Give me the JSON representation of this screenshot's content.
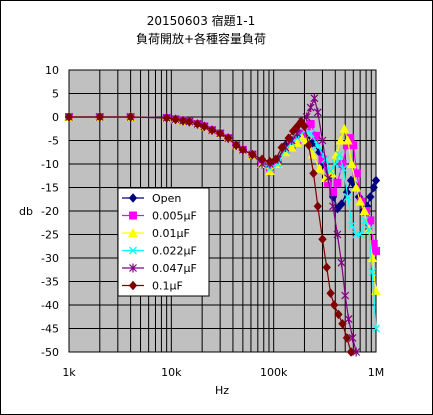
{
  "chart_data": {
    "type": "line",
    "title": [
      "20150603 宿題1-1",
      "負荷開放+各種容量負荷"
    ],
    "xlabel": "Hz",
    "ylabel": "db",
    "xscale": "log",
    "xlim": [
      1000,
      1000000
    ],
    "ylim": [
      -50,
      10
    ],
    "yticks": [
      10,
      5,
      0,
      -5,
      -10,
      -15,
      -20,
      -25,
      -30,
      -35,
      -40,
      -45,
      -50
    ],
    "xtick_values": [
      1000,
      10000,
      100000,
      1000000
    ],
    "xtick_labels": [
      "1k",
      "10k",
      "100k",
      "1M"
    ],
    "grid": true,
    "plot_background": "#c0c0c0",
    "legend_placement": "left-center",
    "series": [
      {
        "name": "Open",
        "color": "#000080",
        "marker": "diamond",
        "points": [
          [
            1000,
            0
          ],
          [
            2000,
            0
          ],
          [
            4000,
            0
          ],
          [
            9000,
            -0.2
          ],
          [
            11000,
            -0.5
          ],
          [
            13000,
            -0.8
          ],
          [
            15000,
            -1
          ],
          [
            18000,
            -1.5
          ],
          [
            21000,
            -2
          ],
          [
            25000,
            -2.8
          ],
          [
            30000,
            -3.5
          ],
          [
            36000,
            -4.5
          ],
          [
            43000,
            -6
          ],
          [
            50000,
            -7
          ],
          [
            62000,
            -8
          ],
          [
            77000,
            -10
          ],
          [
            92000,
            -11
          ],
          [
            110000,
            -9
          ],
          [
            130000,
            -6
          ],
          [
            150000,
            -5
          ],
          [
            170000,
            -4.5
          ],
          [
            190000,
            -4
          ],
          [
            210000,
            -4.5
          ],
          [
            240000,
            -5.5
          ],
          [
            280000,
            -7.5
          ],
          [
            310000,
            -10
          ],
          [
            340000,
            -13
          ],
          [
            380000,
            -17
          ],
          [
            420000,
            -19.5
          ],
          [
            460000,
            -18.5
          ],
          [
            520000,
            -16
          ],
          [
            570000,
            -13.5
          ],
          [
            620000,
            -14.5
          ],
          [
            680000,
            -17
          ],
          [
            750000,
            -20
          ],
          [
            820000,
            -19
          ],
          [
            880000,
            -17
          ],
          [
            950000,
            -15
          ],
          [
            1000000,
            -13.5
          ]
        ]
      },
      {
        "name": "0.005μF",
        "color": "#ff00ff",
        "marker": "square",
        "points": [
          [
            1000,
            0
          ],
          [
            2000,
            0
          ],
          [
            4000,
            0
          ],
          [
            9000,
            -0.2
          ],
          [
            11000,
            -0.5
          ],
          [
            13000,
            -0.8
          ],
          [
            15000,
            -1
          ],
          [
            18000,
            -1.5
          ],
          [
            21000,
            -2
          ],
          [
            25000,
            -2.8
          ],
          [
            30000,
            -3.5
          ],
          [
            36000,
            -4.5
          ],
          [
            43000,
            -6
          ],
          [
            50000,
            -7
          ],
          [
            62000,
            -8
          ],
          [
            77000,
            -10
          ],
          [
            92000,
            -11
          ],
          [
            110000,
            -9.5
          ],
          [
            130000,
            -7
          ],
          [
            150000,
            -6
          ],
          [
            170000,
            -5
          ],
          [
            190000,
            -3.5
          ],
          [
            210000,
            -2
          ],
          [
            230000,
            -1.5
          ],
          [
            260000,
            -4
          ],
          [
            300000,
            -9
          ],
          [
            340000,
            -14
          ],
          [
            380000,
            -16
          ],
          [
            420000,
            -14
          ],
          [
            470000,
            -10
          ],
          [
            520000,
            -6
          ],
          [
            560000,
            -4.5
          ],
          [
            600000,
            -6
          ],
          [
            650000,
            -12
          ],
          [
            720000,
            -18
          ],
          [
            800000,
            -20
          ],
          [
            880000,
            -22
          ],
          [
            950000,
            -27
          ],
          [
            1000000,
            -28.5
          ]
        ]
      },
      {
        "name": "0.01μF",
        "color": "#ffff00",
        "marker": "triangle",
        "points": [
          [
            1000,
            0
          ],
          [
            2000,
            0
          ],
          [
            4000,
            0
          ],
          [
            9000,
            -0.2
          ],
          [
            11000,
            -0.5
          ],
          [
            13000,
            -0.8
          ],
          [
            15000,
            -1
          ],
          [
            18000,
            -1.5
          ],
          [
            21000,
            -2
          ],
          [
            25000,
            -2.8
          ],
          [
            30000,
            -3.5
          ],
          [
            36000,
            -4.5
          ],
          [
            43000,
            -6
          ],
          [
            50000,
            -7
          ],
          [
            62000,
            -8
          ],
          [
            77000,
            -10
          ],
          [
            92000,
            -11.5
          ],
          [
            110000,
            -10
          ],
          [
            130000,
            -7.5
          ],
          [
            150000,
            -6.5
          ],
          [
            170000,
            -5.5
          ],
          [
            190000,
            -4.5
          ],
          [
            210000,
            -5
          ],
          [
            240000,
            -8
          ],
          [
            280000,
            -11
          ],
          [
            320000,
            -13
          ],
          [
            370000,
            -12
          ],
          [
            410000,
            -8
          ],
          [
            450000,
            -5
          ],
          [
            490000,
            -2.5
          ],
          [
            530000,
            -5
          ],
          [
            580000,
            -10
          ],
          [
            640000,
            -15
          ],
          [
            700000,
            -18
          ],
          [
            770000,
            -20
          ],
          [
            850000,
            -24
          ],
          [
            920000,
            -30
          ],
          [
            1000000,
            -37
          ]
        ]
      },
      {
        "name": "0.022μF",
        "color": "#00ffff",
        "marker": "x",
        "points": [
          [
            1000,
            0
          ],
          [
            2000,
            0
          ],
          [
            4000,
            0
          ],
          [
            9000,
            -0.2
          ],
          [
            11000,
            -0.5
          ],
          [
            13000,
            -0.8
          ],
          [
            15000,
            -1
          ],
          [
            18000,
            -1.5
          ],
          [
            21000,
            -2
          ],
          [
            25000,
            -2.8
          ],
          [
            30000,
            -3.5
          ],
          [
            36000,
            -4.5
          ],
          [
            43000,
            -6
          ],
          [
            50000,
            -7
          ],
          [
            62000,
            -8
          ],
          [
            77000,
            -10
          ],
          [
            92000,
            -11
          ],
          [
            110000,
            -10
          ],
          [
            130000,
            -7
          ],
          [
            150000,
            -5.5
          ],
          [
            170000,
            -4.5
          ],
          [
            200000,
            -3
          ],
          [
            230000,
            -3.5
          ],
          [
            270000,
            -6
          ],
          [
            320000,
            -9
          ],
          [
            360000,
            -11.5
          ],
          [
            400000,
            -10
          ],
          [
            440000,
            -8
          ],
          [
            480000,
            -11
          ],
          [
            530000,
            -17
          ],
          [
            580000,
            -23
          ],
          [
            640000,
            -25
          ],
          [
            700000,
            -25
          ],
          [
            780000,
            -22
          ],
          [
            850000,
            -24
          ],
          [
            920000,
            -33
          ],
          [
            1000000,
            -45
          ]
        ]
      },
      {
        "name": "0.047μF",
        "color": "#800080",
        "marker": "star",
        "points": [
          [
            1000,
            0
          ],
          [
            2000,
            0
          ],
          [
            4000,
            0
          ],
          [
            9000,
            -0.2
          ],
          [
            11000,
            -0.5
          ],
          [
            13000,
            -0.8
          ],
          [
            15000,
            -1
          ],
          [
            18000,
            -1.5
          ],
          [
            21000,
            -2
          ],
          [
            25000,
            -2.8
          ],
          [
            30000,
            -3.5
          ],
          [
            36000,
            -4.5
          ],
          [
            43000,
            -6
          ],
          [
            50000,
            -7
          ],
          [
            62000,
            -8
          ],
          [
            77000,
            -10
          ],
          [
            92000,
            -10
          ],
          [
            110000,
            -9
          ],
          [
            130000,
            -6.5
          ],
          [
            150000,
            -5
          ],
          [
            170000,
            -3.5
          ],
          [
            190000,
            -1
          ],
          [
            210000,
            0
          ],
          [
            230000,
            2
          ],
          [
            250000,
            4
          ],
          [
            270000,
            1
          ],
          [
            300000,
            -5
          ],
          [
            340000,
            -13
          ],
          [
            380000,
            -19
          ],
          [
            420000,
            -25
          ],
          [
            460000,
            -31
          ],
          [
            500000,
            -38
          ],
          [
            540000,
            -43
          ],
          [
            590000,
            -47
          ],
          [
            640000,
            -50
          ]
        ]
      },
      {
        "name": "0.1μF",
        "color": "#800000",
        "marker": "diamond",
        "points": [
          [
            1000,
            0
          ],
          [
            2000,
            0
          ],
          [
            4000,
            0
          ],
          [
            9000,
            -0.2
          ],
          [
            11000,
            -0.5
          ],
          [
            13000,
            -0.8
          ],
          [
            15000,
            -1
          ],
          [
            18000,
            -1.5
          ],
          [
            21000,
            -2
          ],
          [
            25000,
            -2.8
          ],
          [
            30000,
            -3.5
          ],
          [
            36000,
            -4.5
          ],
          [
            43000,
            -6
          ],
          [
            50000,
            -7
          ],
          [
            62000,
            -8
          ],
          [
            77000,
            -9
          ],
          [
            92000,
            -9.5
          ],
          [
            105000,
            -9
          ],
          [
            120000,
            -6.5
          ],
          [
            140000,
            -4.5
          ],
          [
            155000,
            -3
          ],
          [
            170000,
            -2
          ],
          [
            185000,
            -1
          ],
          [
            200000,
            -2
          ],
          [
            220000,
            -6
          ],
          [
            245000,
            -12
          ],
          [
            270000,
            -19
          ],
          [
            300000,
            -26
          ],
          [
            330000,
            -32
          ],
          [
            360000,
            -37.5
          ],
          [
            390000,
            -40
          ],
          [
            430000,
            -42
          ],
          [
            470000,
            -44
          ],
          [
            520000,
            -47
          ],
          [
            570000,
            -50
          ]
        ]
      }
    ]
  }
}
